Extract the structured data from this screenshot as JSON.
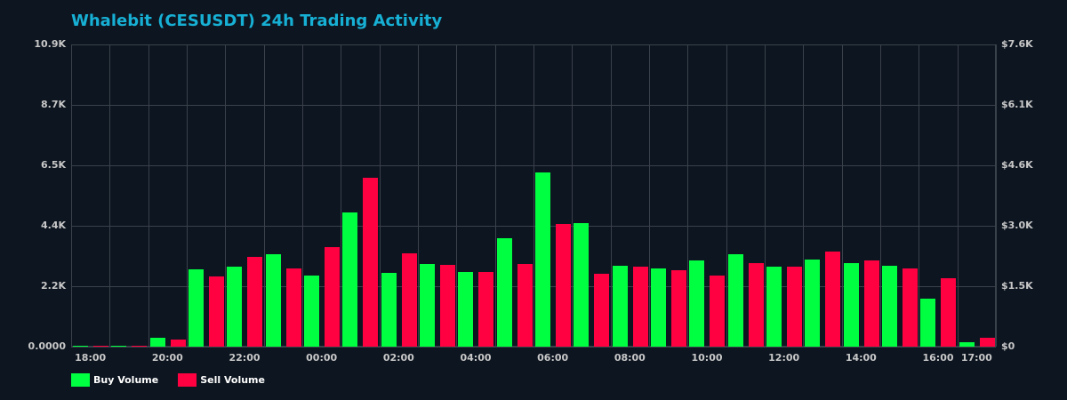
{
  "title": "Whalebit (CESUSDT) 24h Trading Activity",
  "colors": {
    "background": "#0d1520",
    "title": "#17b0d5",
    "buy": "#00ff41",
    "sell": "#ff0040",
    "grid": "#3a414b",
    "tick": "#c8c8c8"
  },
  "left_axis": {
    "ticks": [
      "10.9K",
      "8.7K",
      "6.5K",
      "4.4K",
      "2.2K",
      "0.0000"
    ]
  },
  "right_axis": {
    "ticks": [
      "$7.6K",
      "$6.1K",
      "$4.6K",
      "$3.0K",
      "$1.5K",
      "$0"
    ]
  },
  "x_axis": {
    "labels": [
      "18:00",
      "20:00",
      "22:00",
      "00:00",
      "02:00",
      "04:00",
      "06:00",
      "08:00",
      "10:00",
      "12:00",
      "14:00",
      "16:00",
      "17:00"
    ]
  },
  "legend": {
    "buy_label": "Buy Volume",
    "sell_label": "Sell Volume"
  },
  "chart_data": {
    "type": "bar",
    "title": "Whalebit (CESUSDT) 24h Trading Activity",
    "xlabel": "",
    "ylabel": "",
    "ylim": [
      0,
      10900
    ],
    "y2lim": [
      0,
      7600
    ],
    "y_ticks": [
      "0.0000",
      "2.2K",
      "4.4K",
      "6.5K",
      "8.7K",
      "10.9K"
    ],
    "y2_ticks": [
      "$0",
      "$1.5K",
      "$3.0K",
      "$4.6K",
      "$6.1K",
      "$7.6K"
    ],
    "grid": true,
    "legend_position": "bottom-left",
    "categories": [
      "18:00",
      "19:00",
      "20:00",
      "21:00",
      "22:00",
      "23:00",
      "00:00",
      "01:00",
      "02:00",
      "03:00",
      "04:00",
      "05:00",
      "06:00",
      "07:00",
      "08:00",
      "09:00",
      "10:00",
      "11:00",
      "12:00",
      "13:00",
      "14:00",
      "15:00",
      "16:00",
      "17:00"
    ],
    "series": [
      {
        "name": "Buy Volume",
        "color": "#00ff41",
        "values": [
          25,
          25,
          321,
          2789,
          2885,
          3334,
          2565,
          4841,
          2661,
          2982,
          2693,
          3911,
          6284,
          4456,
          2917,
          2821,
          3110,
          3334,
          2885,
          3142,
          3014,
          2917,
          1731,
          160
        ]
      },
      {
        "name": "Sell Volume",
        "color": "#ff0040",
        "values": [
          20,
          20,
          256,
          2533,
          3238,
          2821,
          3591,
          6091,
          3366,
          2949,
          2693,
          2982,
          4424,
          2629,
          2885,
          2757,
          2565,
          3014,
          2885,
          3430,
          3110,
          2821,
          2469,
          321
        ]
      }
    ]
  }
}
